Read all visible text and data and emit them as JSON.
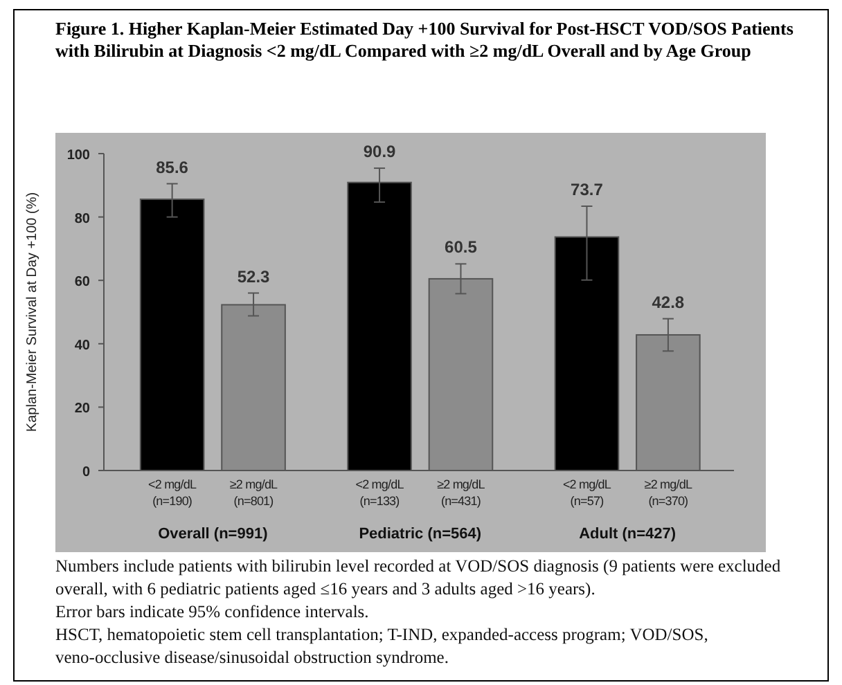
{
  "chart_data": {
    "type": "bar",
    "title": "Figure 1. Higher Kaplan-Meier Estimated Day +100 Survival for Post-HSCT VOD/SOS Patients with Bilirubin at Diagnosis <2 mg/dL Compared with ≥2 mg/dL Overall and by Age Group",
    "ylabel": "Kaplan-Meier Survival at Day +100 (%)",
    "categories": [
      "<2 mg/dL\n(n=190)",
      "≥2 mg/dL\n(n=801)",
      "<2 mg/dL\n(n=133)",
      "≥2 mg/dL\n(n=431)",
      "<2 mg/dL\n(n=57)",
      "≥2 mg/dL\n(n=370)"
    ],
    "values": [
      85.6,
      52.3,
      90.9,
      60.5,
      73.7,
      42.8
    ],
    "colors": [
      "#000000",
      "#8c8c8c",
      "#000000",
      "#8c8c8c",
      "#000000",
      "#8c8c8c"
    ],
    "errors": [
      [
        80,
        90.5
      ],
      [
        48.8,
        56
      ],
      [
        84.7,
        95.4
      ],
      [
        55.8,
        65.2
      ],
      [
        60.1,
        83.4
      ],
      [
        37.7,
        47.9
      ]
    ],
    "data_labels": true,
    "ylim": [
      0,
      100
    ],
    "yticks": [
      0,
      20,
      40,
      60,
      80,
      100
    ],
    "annotations": [
      "Overall (n=991)",
      "Pediatric (n=564)",
      "Adult (n=427)",
      "Numbers include patients with bilirubin level recorded at VOD/SOS diagnosis (9 patients were excluded overall, with 6 pediatric patients aged ≤16 years and 3 adults aged >16 years).",
      "Error bars indicate 95% confidence intervals.",
      "HSCT, hematopoietic stem cell transplantation; T-IND, expanded-access program; VOD/SOS, veno-occlusive disease/sinusoidal obstruction syndrome."
    ]
  }
}
